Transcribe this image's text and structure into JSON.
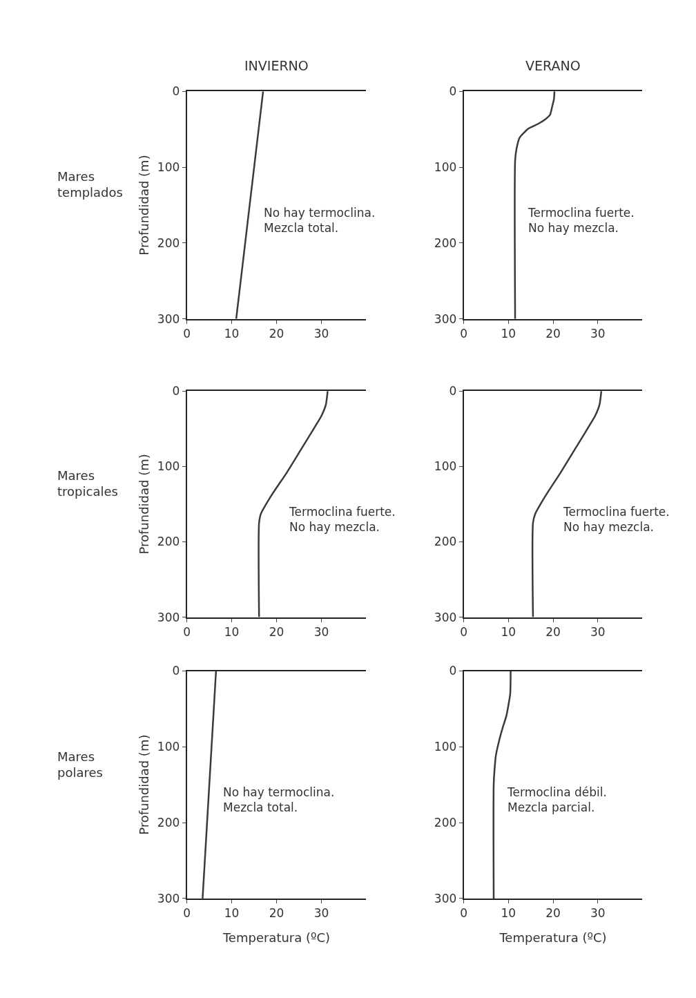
{
  "chart_data": [
    {
      "type": "line",
      "title": "INVIERNO",
      "ylabel": "Profundidad (m)",
      "annotations": [
        "Mares\ntemplados",
        "No hay termoclina.\nMezcla total."
      ],
      "series": [
        {
          "color": "#3a3a3a",
          "x": [
            17,
            11
          ],
          "values": [
            0,
            300
          ]
        }
      ],
      "xlim": [
        0,
        40
      ],
      "ylim": [
        300,
        0
      ],
      "xticks": [
        0,
        10,
        20,
        30
      ],
      "yticks": [
        0,
        100,
        200,
        300
      ],
      "marker": "none",
      "line_style": "solid"
    },
    {
      "type": "line",
      "title": "VERANO",
      "annotations": [
        "Termoclina fuerte.\nNo hay mezcla."
      ],
      "series": [
        {
          "color": "#3a3a3a",
          "x": [
            20.3,
            20.2,
            19.8,
            19.3,
            18.2,
            16.6,
            14.5,
            12.5,
            11.8,
            11.5,
            11.5
          ],
          "values": [
            0,
            10,
            20,
            31,
            37,
            43,
            49,
            61,
            76,
            91,
            300
          ]
        }
      ],
      "xlim": [
        0,
        40
      ],
      "ylim": [
        300,
        0
      ],
      "xticks": [
        0,
        10,
        20,
        30
      ],
      "yticks": [
        0,
        100,
        200,
        300
      ],
      "marker": "none",
      "line_style": "solid"
    },
    {
      "type": "line",
      "ylabel": "Profundidad (m)",
      "annotations": [
        "Mares\ntropicales",
        "Termoclina fuerte.\nNo hay mezcla."
      ],
      "series": [
        {
          "color": "#3a3a3a",
          "x": [
            31.4,
            31,
            30,
            28.5,
            25.4,
            22.3,
            18.8,
            16.5,
            16.1,
            16.1
          ],
          "values": [
            0,
            18,
            33,
            48,
            78,
            108,
            139,
            163,
            175,
            300
          ]
        }
      ],
      "xlim": [
        0,
        40
      ],
      "ylim": [
        300,
        0
      ],
      "xticks": [
        0,
        10,
        20,
        30
      ],
      "yticks": [
        0,
        100,
        200,
        300
      ],
      "marker": "none",
      "line_style": "solid"
    },
    {
      "type": "line",
      "annotations": [
        "Termoclina fuerte.\nNo hay mezcla."
      ],
      "series": [
        {
          "color": "#3a3a3a",
          "x": [
            30.8,
            30.4,
            29.4,
            27.9,
            24.8,
            21.7,
            18.3,
            16,
            15.5,
            15.5
          ],
          "values": [
            0,
            18,
            33,
            48,
            78,
            108,
            139,
            163,
            175,
            300
          ]
        }
      ],
      "xlim": [
        0,
        40
      ],
      "ylim": [
        300,
        0
      ],
      "xticks": [
        0,
        10,
        20,
        30
      ],
      "yticks": [
        0,
        100,
        200,
        300
      ],
      "marker": "none",
      "line_style": "solid"
    },
    {
      "type": "line",
      "xlabel": "Temperatura (ºC)",
      "ylabel": "Profundidad (m)",
      "annotations": [
        "Mares\npolares",
        "No hay termoclina.\nMezcla total."
      ],
      "series": [
        {
          "color": "#3a3a3a",
          "x": [
            6.5,
            3.5
          ],
          "values": [
            0,
            300
          ]
        }
      ],
      "xlim": [
        0,
        40
      ],
      "ylim": [
        300,
        0
      ],
      "xticks": [
        0,
        10,
        20,
        30
      ],
      "yticks": [
        0,
        100,
        200,
        300
      ],
      "marker": "none",
      "line_style": "solid"
    },
    {
      "type": "line",
      "xlabel": "Temperatura (ºC)",
      "annotations": [
        "Termoclina débil.\nMezcla parcial."
      ],
      "series": [
        {
          "color": "#3a3a3a",
          "x": [
            10.5,
            10.4,
            10,
            9.5,
            8.7,
            8,
            7.2,
            6.9,
            6.7,
            6.7
          ],
          "values": [
            0,
            30,
            45,
            60,
            75,
            90,
            111,
            129,
            150,
            300
          ]
        }
      ],
      "xlim": [
        0,
        40
      ],
      "ylim": [
        300,
        0
      ],
      "xticks": [
        0,
        10,
        20,
        30
      ],
      "yticks": [
        0,
        100,
        200,
        300
      ],
      "marker": "none",
      "line_style": "solid"
    }
  ]
}
